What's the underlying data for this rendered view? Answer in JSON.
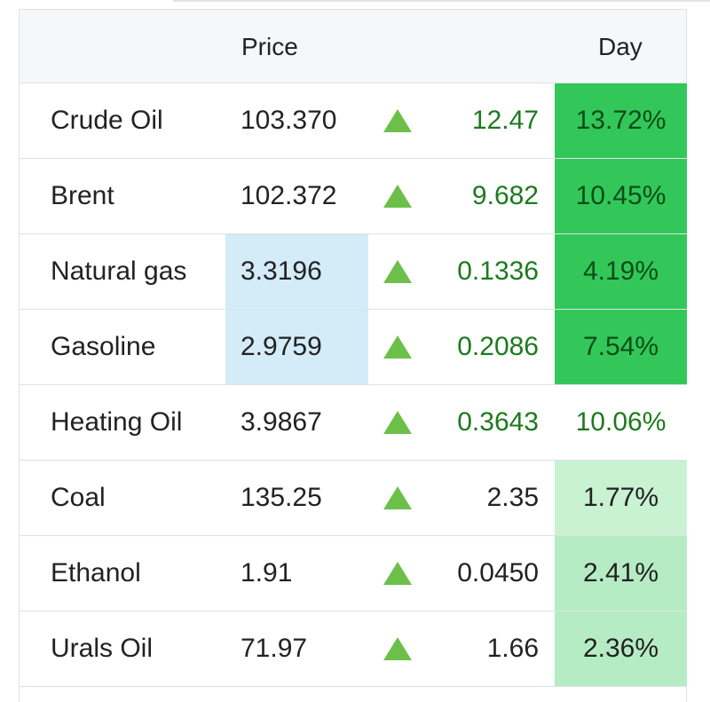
{
  "header": {
    "price_label": "Price",
    "day_label": "Day"
  },
  "colors": {
    "up_arrow": "#6cc04a",
    "positive_text": "#1d7a1d",
    "strong_green": "#33c75a",
    "light_green": "#c8f2d2",
    "highlight_blue": "#d4ebf8"
  },
  "rows": [
    {
      "name": "Crude Oil",
      "price": "103.370",
      "change": "12.47",
      "day": "13.72%",
      "arrow": "up-arrow-icon"
    },
    {
      "name": "Brent",
      "price": "102.372",
      "change": "9.682",
      "day": "10.45%",
      "arrow": "up-arrow-icon"
    },
    {
      "name": "Natural gas",
      "price": "3.3196",
      "change": "0.1336",
      "day": "4.19%",
      "arrow": "up-arrow-icon"
    },
    {
      "name": "Gasoline",
      "price": "2.9759",
      "change": "0.2086",
      "day": "7.54%",
      "arrow": "up-arrow-icon"
    },
    {
      "name": "Heating Oil",
      "price": "3.9867",
      "change": "0.3643",
      "day": "10.06%",
      "arrow": "up-arrow-icon"
    },
    {
      "name": "Coal",
      "price": "135.25",
      "change": "2.35",
      "day": "1.77%",
      "arrow": "up-arrow-icon"
    },
    {
      "name": "Ethanol",
      "price": "1.91",
      "change": "0.0450",
      "day": "2.41%",
      "arrow": "up-arrow-icon"
    },
    {
      "name": "Urals Oil",
      "price": "71.97",
      "change": "1.66",
      "day": "2.36%",
      "arrow": "up-arrow-icon"
    }
  ]
}
